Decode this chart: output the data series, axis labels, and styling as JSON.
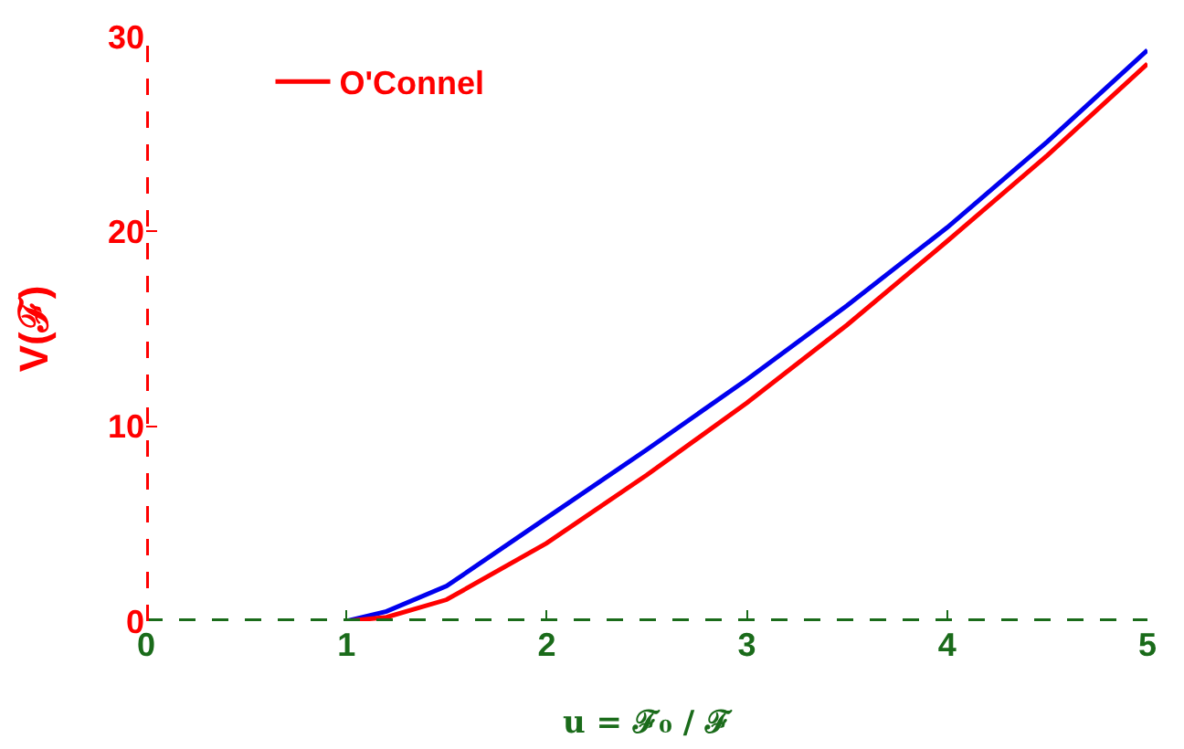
{
  "chart_data": {
    "type": "line",
    "xlabel": "u = ℱ₀ / ℱ",
    "ylabel": "V(ℱ)",
    "x": [
      1,
      1.2,
      1.5,
      2,
      2.5,
      3,
      3.5,
      4,
      4.5,
      5
    ],
    "series": [
      {
        "color": "#0000ee",
        "values": [
          0,
          0.5,
          1.8,
          5.3,
          8.8,
          12.4,
          16.2,
          20.2,
          24.6,
          29.3
        ]
      },
      {
        "name": "O'Connel",
        "color": "#ff0000",
        "values": [
          0,
          0.2,
          1.1,
          4.0,
          7.5,
          11.2,
          15.2,
          19.5,
          23.9,
          28.6
        ]
      }
    ],
    "xlim": [
      0,
      5
    ],
    "xticks": [
      0,
      1,
      2,
      3,
      4,
      5
    ],
    "ylim": [
      0,
      30
    ],
    "yticks": [
      0,
      10,
      20,
      30
    ],
    "grid": false,
    "legend": "top left",
    "marker": "none",
    "line_style": "solid"
  }
}
